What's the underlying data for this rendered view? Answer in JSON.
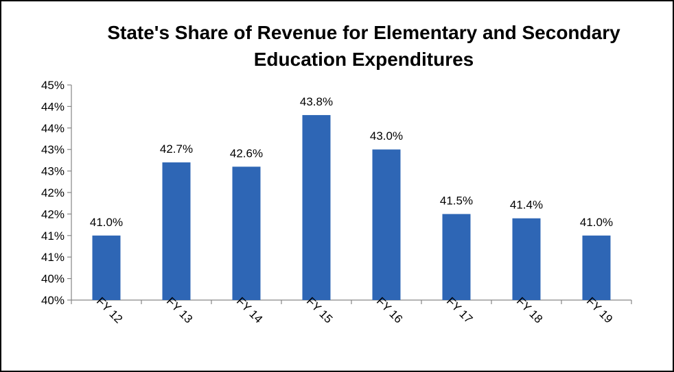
{
  "chart_data": {
    "type": "bar",
    "title_line1": "State's Share of Revenue for Elementary and Secondary",
    "title_line2": "Education Expenditures",
    "xlabel": "",
    "ylabel": "",
    "categories": [
      "FY 12",
      "FY 13",
      "FY 14",
      "FY 15",
      "FY 16",
      "FY 17",
      "FY 18",
      "FY 19"
    ],
    "values": [
      41.0,
      42.7,
      42.6,
      43.8,
      43.0,
      41.5,
      41.4,
      41.0
    ],
    "data_labels": [
      "41.0%",
      "42.7%",
      "42.6%",
      "43.8%",
      "43.0%",
      "41.5%",
      "41.4%",
      "41.0%"
    ],
    "ylim": [
      39.5,
      44.5
    ],
    "y_tick_values": [
      39.5,
      40.0,
      40.5,
      41.0,
      41.5,
      42.0,
      42.5,
      43.0,
      43.5,
      44.0,
      44.5
    ],
    "y_tick_labels": [
      "40%",
      "40%",
      "41%",
      "41%",
      "42%",
      "42%",
      "43%",
      "43%",
      "44%",
      "44%",
      "45%"
    ],
    "bar_color": "#2E66B5",
    "grid": false,
    "legend": "none"
  }
}
